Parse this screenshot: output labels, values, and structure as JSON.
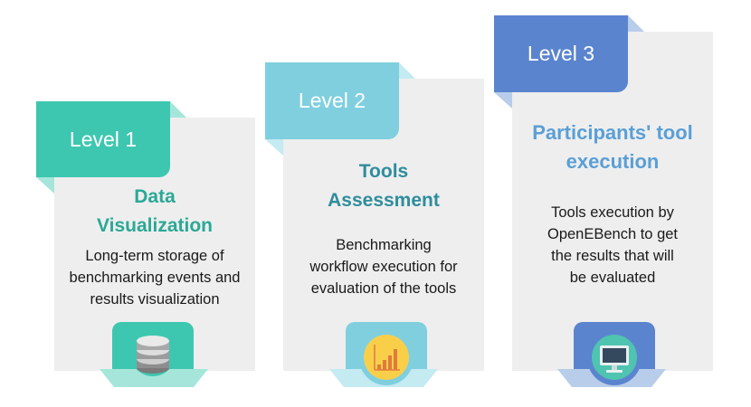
{
  "colors": {
    "level1": "#3ec7b0",
    "level1_light": "#a6e6da",
    "level2": "#7fcfdf",
    "level2_light": "#c4eaf2",
    "level3": "#5b84cf",
    "level3_light": "#b8cde9",
    "card": "#eeeeee",
    "title1": "#2ba896",
    "title2": "#2e8d9c",
    "title3": "#5a9fd6"
  },
  "levels": [
    {
      "tab": "Level 1",
      "title_lines": [
        "Data",
        "Visualization"
      ],
      "desc_lines": [
        "Long-term storage of",
        "benchmarking events and",
        "results visualization"
      ],
      "icon": "database-icon"
    },
    {
      "tab": "Level 2",
      "title_lines": [
        "Tools",
        "Assessment"
      ],
      "desc_lines": [
        "Benchmarking",
        "workflow execution for",
        "evaluation of the tools"
      ],
      "icon": "bar-chart-icon"
    },
    {
      "tab": "Level 3",
      "title_lines": [
        "Participants' tool",
        "execution"
      ],
      "desc_lines": [
        "Tools execution by",
        "OpenEBench to get",
        "the results that will",
        "be evaluated"
      ],
      "icon": "monitor-icon"
    }
  ]
}
